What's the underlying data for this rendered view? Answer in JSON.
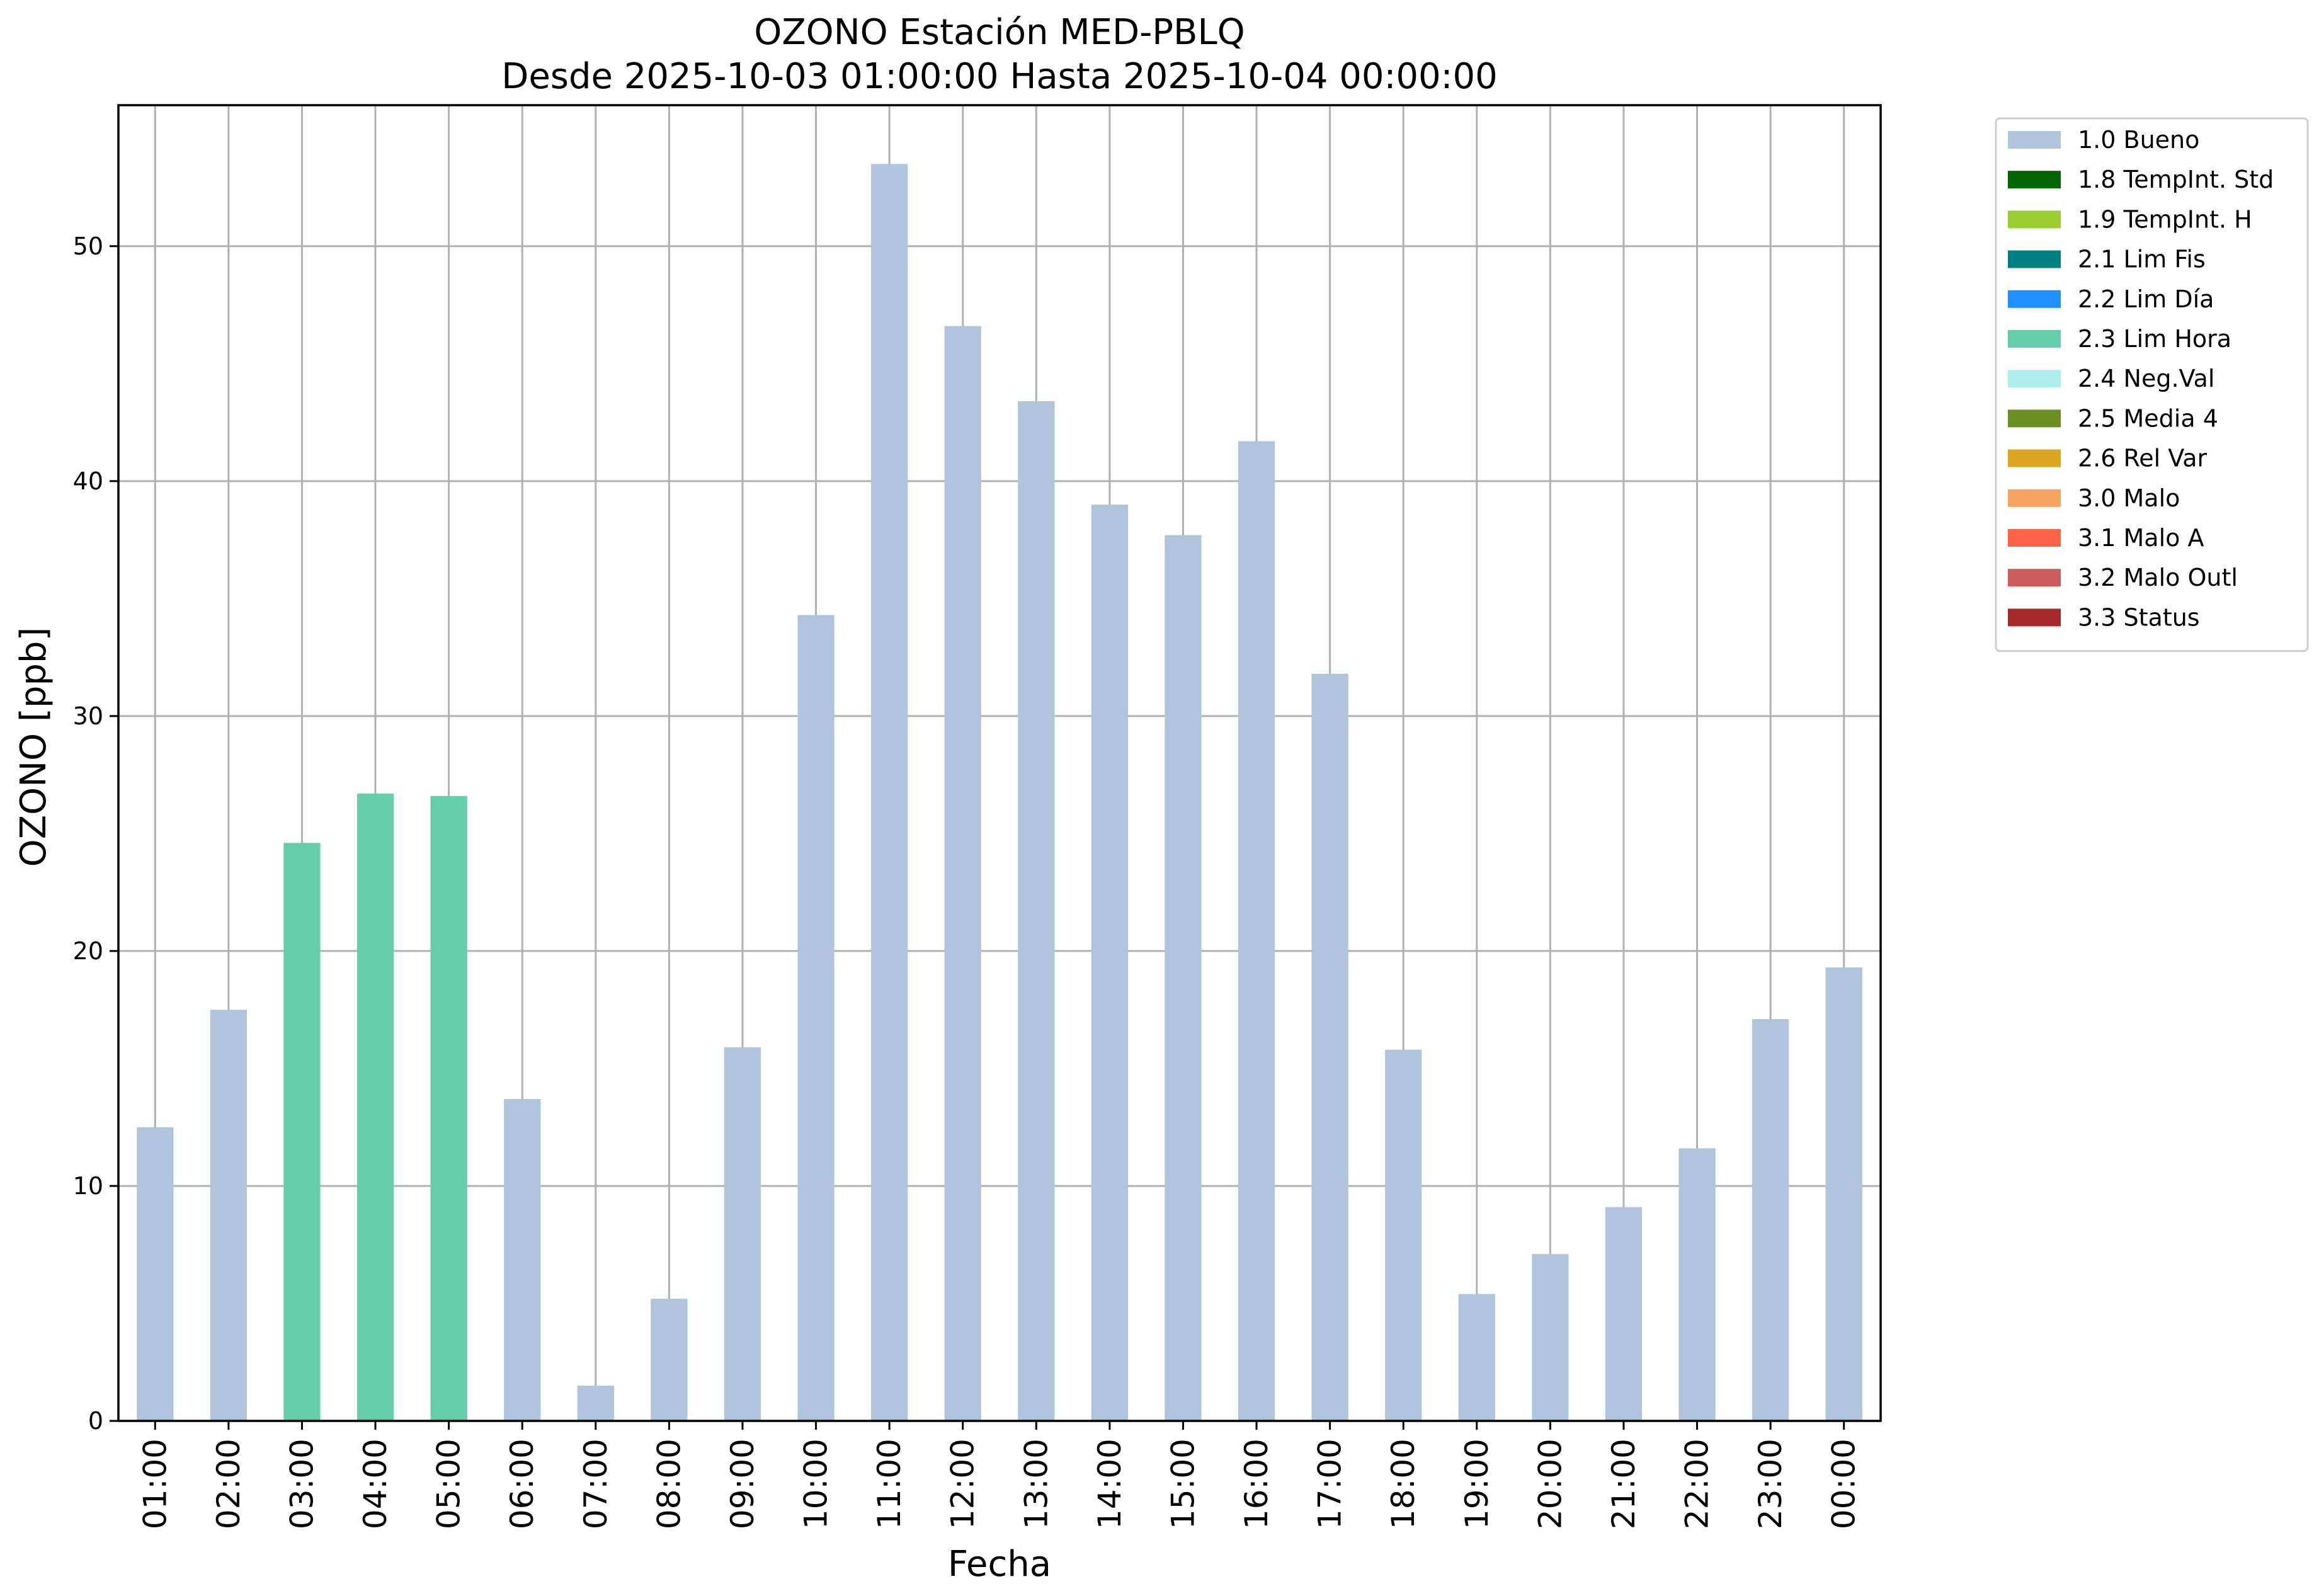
{
  "chart_data": {
    "type": "bar",
    "title": "OZONO Estación MED-PBLQ",
    "subtitle": "Desde 2025-10-03 01:00:00 Hasta 2025-10-04 00:00:00",
    "xlabel": "Fecha",
    "ylabel": "OZONO [ppb]",
    "ylim": [
      0,
      56
    ],
    "yticks": [
      0,
      10,
      20,
      30,
      40,
      50
    ],
    "grid": true,
    "legend_position": "outside-top-right",
    "categories": [
      "01:00",
      "02:00",
      "03:00",
      "04:00",
      "05:00",
      "06:00",
      "07:00",
      "08:00",
      "09:00",
      "10:00",
      "11:00",
      "12:00",
      "13:00",
      "14:00",
      "15:00",
      "16:00",
      "17:00",
      "18:00",
      "19:00",
      "20:00",
      "21:00",
      "22:00",
      "23:00",
      "00:00"
    ],
    "values": [
      12.5,
      17.5,
      24.6,
      26.7,
      26.6,
      13.7,
      1.5,
      5.2,
      15.9,
      34.3,
      53.5,
      46.6,
      43.4,
      39.0,
      37.7,
      41.7,
      31.8,
      15.8,
      5.4,
      7.1,
      9.1,
      11.6,
      17.1,
      19.3
    ],
    "flags": [
      "1.0 Bueno",
      "1.0 Bueno",
      "2.3 Lim Hora",
      "2.3 Lim Hora",
      "2.3 Lim Hora",
      "1.0 Bueno",
      "1.0 Bueno",
      "1.0 Bueno",
      "1.0 Bueno",
      "1.0 Bueno",
      "1.0 Bueno",
      "1.0 Bueno",
      "1.0 Bueno",
      "1.0 Bueno",
      "1.0 Bueno",
      "1.0 Bueno",
      "1.0 Bueno",
      "1.0 Bueno",
      "1.0 Bueno",
      "1.0 Bueno",
      "1.0 Bueno",
      "1.0 Bueno",
      "1.0 Bueno",
      "1.0 Bueno"
    ],
    "legend": [
      {
        "label": "1.0 Bueno",
        "color": "#b0c4de"
      },
      {
        "label": "1.8 TempInt. Std",
        "color": "#006400"
      },
      {
        "label": "1.9 TempInt. H",
        "color": "#9acd32"
      },
      {
        "label": "2.1 Lim Fis",
        "color": "#008080"
      },
      {
        "label": "2.2 Lim Día",
        "color": "#1e90ff"
      },
      {
        "label": "2.3 Lim Hora",
        "color": "#66cdaa"
      },
      {
        "label": "2.4 Neg.Val",
        "color": "#afeeee"
      },
      {
        "label": "2.5 Media 4",
        "color": "#6b8e23"
      },
      {
        "label": "2.6 Rel Var",
        "color": "#daa520"
      },
      {
        "label": "3.0 Malo",
        "color": "#f4a460"
      },
      {
        "label": "3.1 Malo A",
        "color": "#ff6347"
      },
      {
        "label": "3.2 Malo Outl",
        "color": "#cd5c5c"
      },
      {
        "label": "3.3 Status",
        "color": "#a52a2a"
      }
    ]
  }
}
